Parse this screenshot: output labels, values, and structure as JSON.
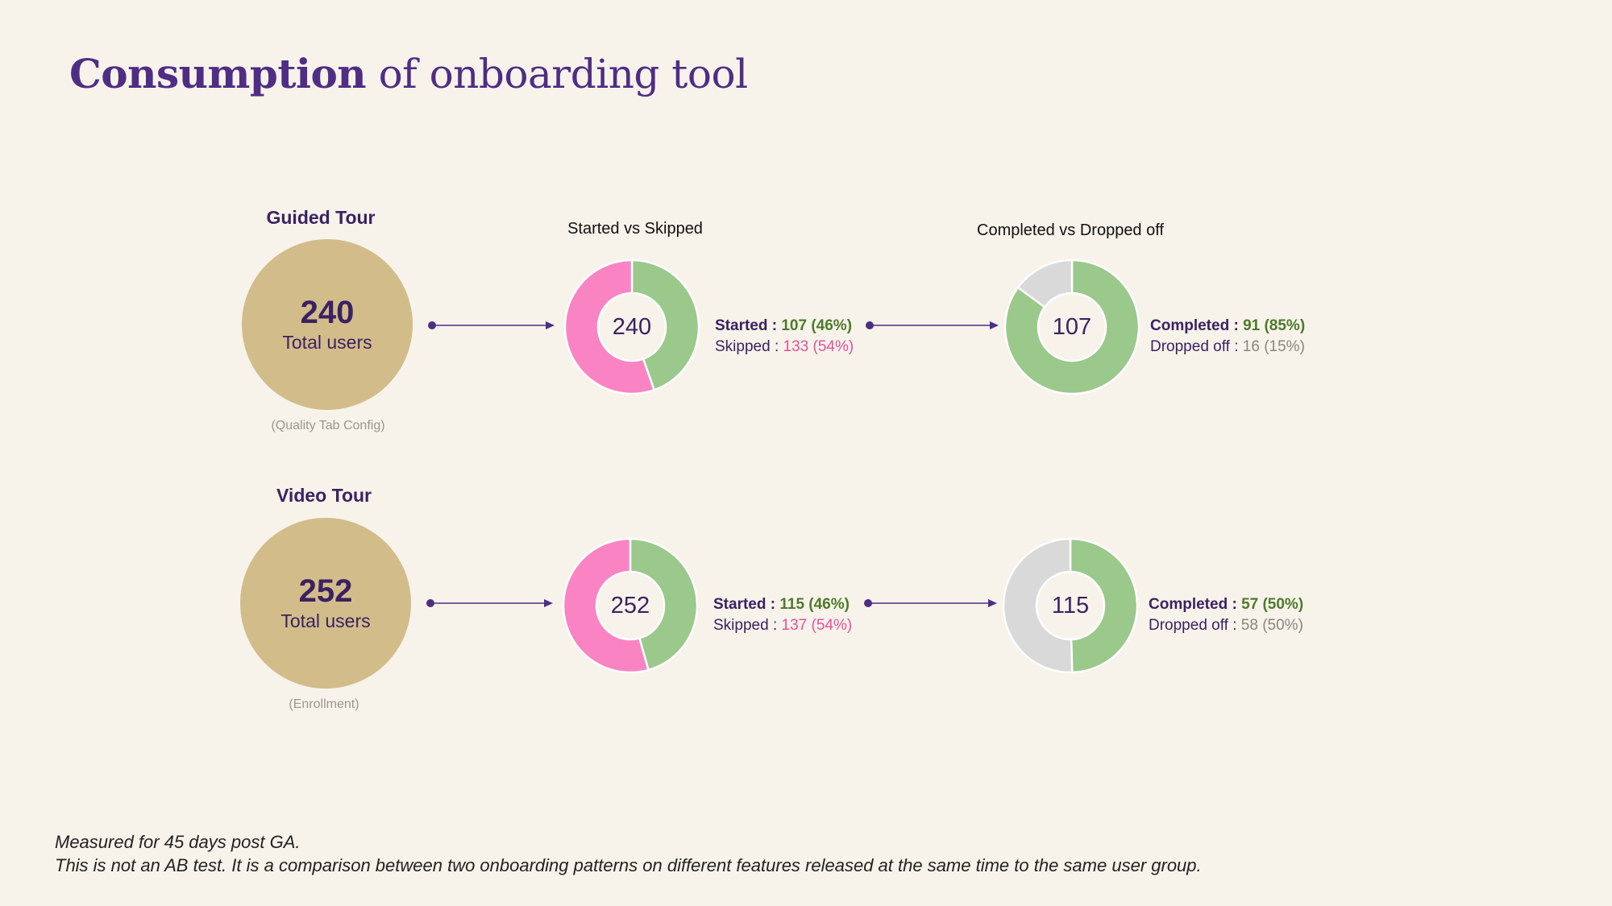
{
  "title": {
    "bold": "Consumption",
    "rest": " of onboarding tool"
  },
  "chart_titles": {
    "started_vs_skipped": "Started vs Skipped",
    "completed_vs_dropped": "Completed vs Dropped off"
  },
  "colors": {
    "started": "#9ac98b",
    "skipped": "#fa84c3",
    "completed": "#9ac98b",
    "dropped": "#d9d9d9",
    "total_circle": "#d2bd8a",
    "arrow": "#4f2d85"
  },
  "chart_data": [
    {
      "type": "pie",
      "group": "Guided Tour",
      "title": "Started vs Skipped",
      "center": "240",
      "slices": [
        {
          "name": "Started",
          "value": 107,
          "pct": "46%",
          "color": "#9ac98b"
        },
        {
          "name": "Skipped",
          "value": 133,
          "pct": "54%",
          "color": "#fa84c3"
        }
      ]
    },
    {
      "type": "pie",
      "group": "Guided Tour",
      "title": "Completed vs Dropped off",
      "center": "107",
      "slices": [
        {
          "name": "Completed",
          "value": 91,
          "pct": "85%",
          "color": "#9ac98b"
        },
        {
          "name": "Dropped off",
          "value": 16,
          "pct": "15%",
          "color": "#d9d9d9"
        }
      ]
    },
    {
      "type": "pie",
      "group": "Video Tour",
      "title": "Started vs Skipped",
      "center": "252",
      "slices": [
        {
          "name": "Started",
          "value": 115,
          "pct": "46%",
          "color": "#9ac98b"
        },
        {
          "name": "Skipped",
          "value": 137,
          "pct": "54%",
          "color": "#fa84c3"
        }
      ]
    },
    {
      "type": "pie",
      "group": "Video Tour",
      "title": "Completed vs Dropped off",
      "center": "115",
      "slices": [
        {
          "name": "Completed",
          "value": 57,
          "pct": "50%",
          "color": "#9ac98b"
        },
        {
          "name": "Dropped off",
          "value": 58,
          "pct": "50%",
          "color": "#d9d9d9"
        }
      ]
    }
  ],
  "groups": [
    {
      "name": "Guided Tour",
      "total": "240",
      "total_label": "Total users",
      "note": "(Quality Tab Config)",
      "started": {
        "label": "Started :",
        "value": "107 (46%)"
      },
      "skipped": {
        "label": "Skipped :",
        "value": "133 (54%)"
      },
      "completed": {
        "label": "Completed :",
        "value": "91 (85%)"
      },
      "dropped": {
        "label": "Dropped off :",
        "value": "16 (15%)"
      }
    },
    {
      "name": "Video Tour",
      "total": "252",
      "total_label": "Total users",
      "note": "(Enrollment)",
      "started": {
        "label": "Started :",
        "value": "115 (46%)"
      },
      "skipped": {
        "label": "Skipped :",
        "value": "137 (54%)"
      },
      "completed": {
        "label": "Completed :",
        "value": "57 (50%)"
      },
      "dropped": {
        "label": "Dropped off :",
        "value": "58 (50%)"
      }
    }
  ],
  "footnotes": [
    "Measured for 45 days post GA.",
    "This is not an AB test. It is a comparison between two onboarding patterns on different features released at the same time to the same user group."
  ]
}
